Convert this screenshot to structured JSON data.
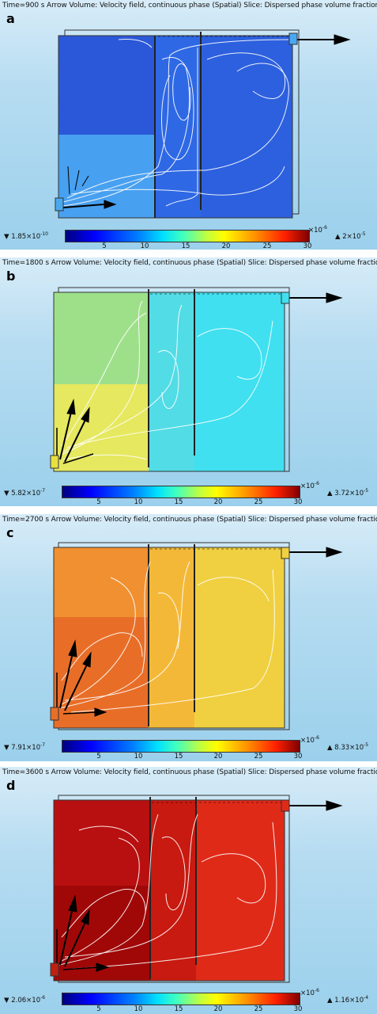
{
  "panels": [
    {
      "letter": "a",
      "time_label": "Time=900 s Arrow Volume: Velocity field, continuous phase (Spatial) Slice: Dispersed phase volume fraction",
      "min": "▼ 1.85×10",
      "min_exp": "-10",
      "max": "▲ 2×10",
      "max_exp": "-5",
      "unit": "×10",
      "unit_exp": "-6",
      "fill_left": "#2a58d8",
      "fill_mid": "#2e68e4",
      "fill_right": "#2c60de",
      "fill_low": "#48a0f0"
    },
    {
      "letter": "b",
      "time_label": "Time=1800 s Arrow Volume: Velocity field, continuous phase (Spatial) Slice: Dispersed phase volume fraction",
      "min": "▼ 5.82×10",
      "min_exp": "-7",
      "max": "▲ 3.72×10",
      "max_exp": "-5",
      "unit": "×10",
      "unit_exp": "-6",
      "fill_left": "#9ee08a",
      "fill_mid": "#52dce6",
      "fill_right": "#40e0f0",
      "fill_low": "#e6e860"
    },
    {
      "letter": "c",
      "time_label": "Time=2700 s Arrow Volume: Velocity field, continuous phase (Spatial) Slice: Dispersed phase volume fraction",
      "min": "▼ 7.91×10",
      "min_exp": "-7",
      "max": "▲ 8.33×10",
      "max_exp": "-5",
      "unit": "×10",
      "unit_exp": "-6",
      "fill_left": "#f09030",
      "fill_mid": "#f4b838",
      "fill_right": "#f0d040",
      "fill_low": "#e86e28"
    },
    {
      "letter": "d",
      "time_label": "Time=3600 s Arrow Volume: Velocity field, continuous phase (Spatial) Slice: Dispersed phase volume fraction",
      "min": "▼ 2.06×10",
      "min_exp": "-6",
      "max": "▲ 1.16×10",
      "max_exp": "-4",
      "unit": "×10",
      "unit_exp": "-6",
      "fill_left": "#b81010",
      "fill_mid": "#c81a10",
      "fill_right": "#e02a18",
      "fill_low": "#a00808"
    }
  ],
  "colorbar_ticks": [
    "5",
    "10",
    "15",
    "20",
    "25",
    "30"
  ]
}
